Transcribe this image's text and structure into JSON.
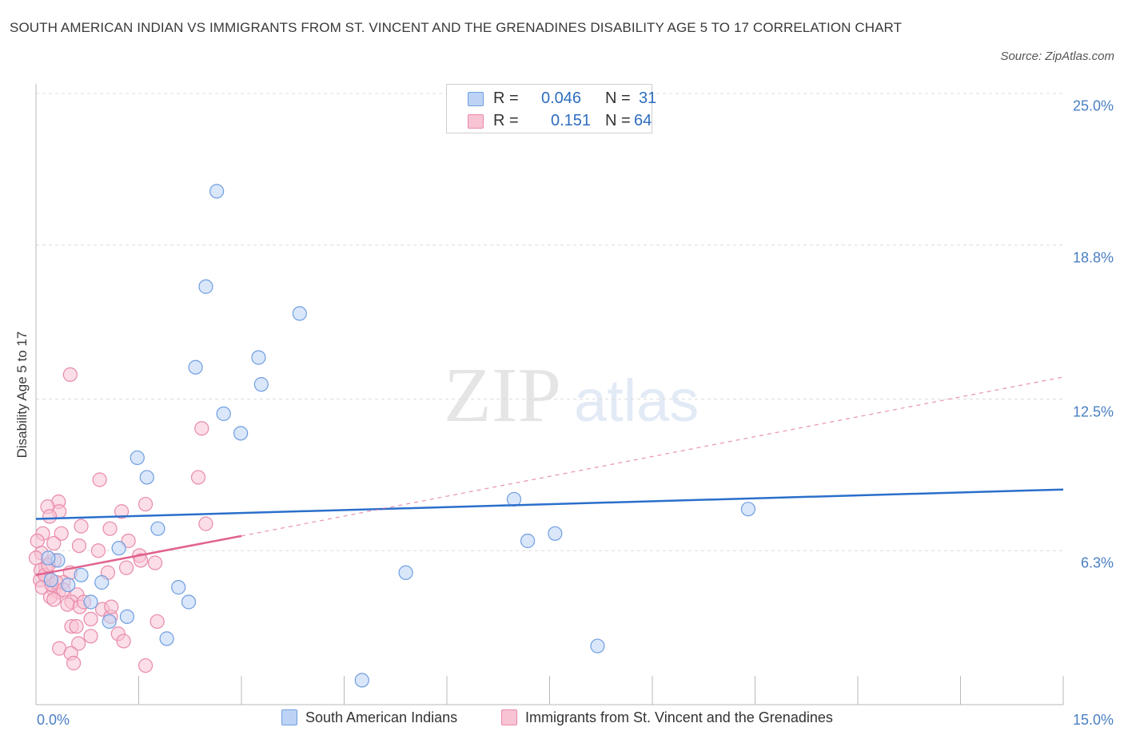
{
  "title": "SOUTH AMERICAN INDIAN VS IMMIGRANTS FROM ST. VINCENT AND THE GRENADINES DISABILITY AGE 5 TO 17 CORRELATION CHART",
  "source": "Source: ZipAtlas.com",
  "watermark": {
    "zip": "ZIP",
    "atlas": "atlas"
  },
  "legend_top": [
    {
      "r_label": "R =",
      "r_value": "0.046",
      "n_label": "N =",
      "n_value": "31"
    },
    {
      "r_label": "R =",
      "r_value": "0.151",
      "n_label": "N =",
      "n_value": "64"
    }
  ],
  "colors": {
    "blue_fill": "#bcd3f5",
    "blue_stroke": "#6f9ee0",
    "blue_line": "#2a6fcb",
    "pink_fill": "#f8c3d3",
    "pink_stroke": "#e98aaa",
    "pink_line": "#e0628f",
    "tick_color": "#4a7fc4",
    "grid": "#dcdcdc"
  },
  "chart_data": {
    "type": "scatter",
    "title": "SOUTH AMERICAN INDIAN VS IMMIGRANTS FROM ST. VINCENT AND THE GRENADINES DISABILITY AGE 5 TO 17 CORRELATION CHART",
    "xlabel": "",
    "ylabel": "Disability Age 5 to 17",
    "xlim": [
      0,
      15
    ],
    "ylim": [
      0,
      25
    ],
    "x_tick_labels": [
      "0.0%",
      "15.0%"
    ],
    "y_ticks": [
      6.3,
      12.5,
      18.8,
      25.0
    ],
    "y_tick_labels": [
      "6.3%",
      "12.5%",
      "18.8%",
      "25.0%"
    ],
    "grid": true,
    "legend_position": "bottom",
    "series": [
      {
        "name": "South American Indians",
        "color": "#6f9ee0",
        "R": 0.046,
        "N": 31,
        "trend": {
          "x": [
            0,
            15
          ],
          "y": [
            7.6,
            8.8
          ]
        },
        "points": [
          [
            2.64,
            21.0
          ],
          [
            2.48,
            17.1
          ],
          [
            3.85,
            16.0
          ],
          [
            2.33,
            13.8
          ],
          [
            3.25,
            14.2
          ],
          [
            3.29,
            13.1
          ],
          [
            2.74,
            11.9
          ],
          [
            2.99,
            11.1
          ],
          [
            1.48,
            10.1
          ],
          [
            1.62,
            9.3
          ],
          [
            1.78,
            7.2
          ],
          [
            1.21,
            6.4
          ],
          [
            0.32,
            5.9
          ],
          [
            0.66,
            5.3
          ],
          [
            0.47,
            4.9
          ],
          [
            0.96,
            5.0
          ],
          [
            2.08,
            4.8
          ],
          [
            0.8,
            4.2
          ],
          [
            2.23,
            4.2
          ],
          [
            1.33,
            3.6
          ],
          [
            1.07,
            3.4
          ],
          [
            1.91,
            2.7
          ],
          [
            5.4,
            5.4
          ],
          [
            6.98,
            8.4
          ],
          [
            7.18,
            6.7
          ],
          [
            7.58,
            7.0
          ],
          [
            10.4,
            8.0
          ],
          [
            8.2,
            2.4
          ],
          [
            4.76,
            1.0
          ],
          [
            0.22,
            5.1
          ],
          [
            0.18,
            6.0
          ]
        ]
      },
      {
        "name": "Immigrants from St. Vincent and the Grenadines",
        "color": "#e98aaa",
        "R": 0.151,
        "N": 64,
        "trend": {
          "x": [
            0,
            3.0
          ],
          "y": [
            5.3,
            6.9
          ]
        },
        "trend_extension": {
          "x": [
            3.0,
            15
          ],
          "y": [
            6.9,
            13.4
          ]
        },
        "points": [
          [
            0.5,
            13.5
          ],
          [
            2.42,
            11.3
          ],
          [
            0.93,
            9.2
          ],
          [
            2.37,
            9.3
          ],
          [
            0.33,
            8.3
          ],
          [
            0.17,
            8.1
          ],
          [
            0.34,
            7.9
          ],
          [
            1.6,
            8.2
          ],
          [
            1.25,
            7.9
          ],
          [
            0.2,
            7.7
          ],
          [
            2.48,
            7.4
          ],
          [
            0.66,
            7.3
          ],
          [
            1.08,
            7.2
          ],
          [
            0.1,
            7.0
          ],
          [
            0.37,
            7.0
          ],
          [
            0.02,
            6.7
          ],
          [
            0.26,
            6.6
          ],
          [
            1.35,
            6.7
          ],
          [
            0.63,
            6.5
          ],
          [
            0.91,
            6.3
          ],
          [
            1.51,
            6.1
          ],
          [
            0.08,
            6.2
          ],
          [
            0.0,
            6.0
          ],
          [
            0.27,
            5.9
          ],
          [
            1.53,
            5.9
          ],
          [
            1.74,
            5.8
          ],
          [
            0.14,
            5.6
          ],
          [
            0.07,
            5.5
          ],
          [
            1.32,
            5.6
          ],
          [
            0.5,
            5.4
          ],
          [
            1.05,
            5.4
          ],
          [
            0.17,
            5.2
          ],
          [
            0.06,
            5.1
          ],
          [
            0.4,
            5.0
          ],
          [
            0.09,
            4.8
          ],
          [
            0.26,
            4.7
          ],
          [
            0.33,
            4.6
          ],
          [
            0.6,
            4.5
          ],
          [
            0.21,
            4.4
          ],
          [
            0.26,
            4.3
          ],
          [
            0.52,
            4.2
          ],
          [
            0.46,
            4.1
          ],
          [
            0.64,
            4.0
          ],
          [
            0.97,
            3.9
          ],
          [
            1.09,
            3.6
          ],
          [
            0.8,
            3.5
          ],
          [
            1.77,
            3.4
          ],
          [
            0.52,
            3.2
          ],
          [
            0.59,
            3.2
          ],
          [
            1.2,
            2.9
          ],
          [
            0.8,
            2.8
          ],
          [
            0.62,
            2.5
          ],
          [
            1.28,
            2.6
          ],
          [
            0.34,
            2.3
          ],
          [
            0.51,
            2.1
          ],
          [
            0.55,
            1.7
          ],
          [
            1.6,
            1.6
          ],
          [
            0.23,
            4.9
          ],
          [
            0.3,
            5.0
          ],
          [
            0.13,
            5.3
          ],
          [
            0.4,
            4.7
          ],
          [
            0.18,
            5.7
          ],
          [
            0.7,
            4.2
          ],
          [
            1.1,
            4.0
          ]
        ]
      }
    ]
  }
}
